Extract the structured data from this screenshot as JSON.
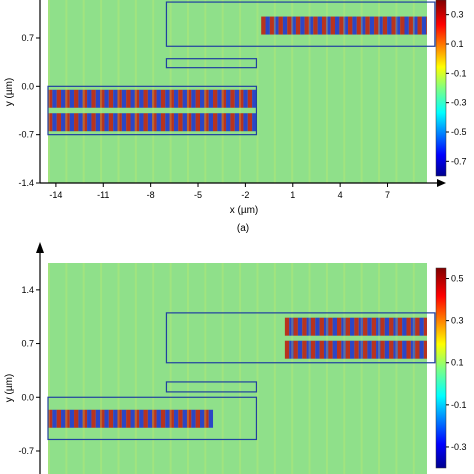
{
  "chart_data": [
    {
      "type": "heatmap",
      "caption": "(a)",
      "xlabel": "x (µm)",
      "ylabel": "y (µm)",
      "xlim": [
        -14.5,
        9.5
      ],
      "ylim": [
        -1.4,
        1.25
      ],
      "x_ticks": [
        "-14",
        "-11",
        "-8",
        "-5",
        "-2",
        "1",
        "4",
        "7"
      ],
      "y_ticks": [
        "0.7",
        "0.0",
        "-0.7",
        "-1.4"
      ],
      "colorbar_ticks": [
        "0.3",
        "0.1",
        "-0.1",
        "-0.3",
        "-0.5",
        "-0.7"
      ],
      "colorbar_range": [
        -0.8,
        0.4
      ],
      "waveguides": [
        {
          "x": [
            -7,
            10
          ],
          "y": [
            0.58,
            1.22
          ]
        },
        {
          "x": [
            -7,
            -1.3
          ],
          "y": [
            0.27,
            0.4
          ]
        },
        {
          "x": [
            -14.5,
            -1.3
          ],
          "y": [
            -0.7,
            0.0
          ]
        }
      ],
      "field": {
        "input_modes_y": [
          -0.18,
          -0.52
        ],
        "input_x_range": [
          -14.5,
          -1.3
        ],
        "output_modes_y": [
          0.88
        ],
        "output_x_range": [
          -1,
          10
        ]
      }
    },
    {
      "type": "heatmap",
      "caption": "",
      "xlabel": "",
      "ylabel": "y (µm)",
      "xlim": [
        -14.5,
        9.5
      ],
      "ylim": [
        -1.0,
        1.75
      ],
      "y_ticks": [
        "1.4",
        "0.7",
        "0.0",
        "-0.7"
      ],
      "colorbar_ticks": [
        "0.5",
        "0.3",
        "0.1",
        "-0.1",
        "-0.3"
      ],
      "colorbar_range": [
        -0.4,
        0.55
      ],
      "waveguides": [
        {
          "x": [
            -7,
            10
          ],
          "y": [
            0.45,
            1.1
          ]
        },
        {
          "x": [
            -7,
            -1.3
          ],
          "y": [
            0.07,
            0.2
          ]
        },
        {
          "x": [
            -14.5,
            -1.3
          ],
          "y": [
            -0.55,
            0.0
          ]
        }
      ],
      "field": {
        "input_modes_y": [
          -0.28
        ],
        "input_x_range": [
          -14.5,
          -4.5
        ],
        "output_modes_y": [
          0.92,
          0.62
        ],
        "output_x_range": [
          0.5,
          10
        ]
      }
    }
  ]
}
